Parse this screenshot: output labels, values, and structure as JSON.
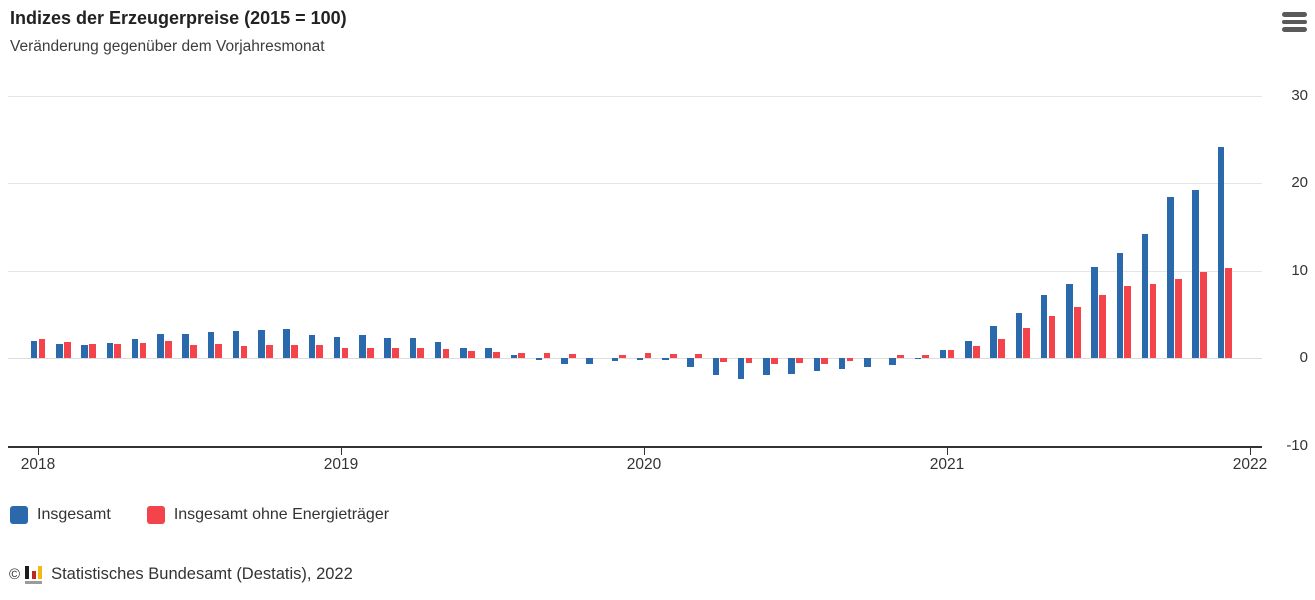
{
  "header": {
    "title": "Indizes der Erzeugerpreise (2015 = 100)",
    "subtitle": "Veränderung gegenüber dem Vorjahresmonat"
  },
  "menu": {
    "icon": "hamburger-icon"
  },
  "chart_data": {
    "type": "bar",
    "title": "Indizes der Erzeugerpreise (2015 = 100)",
    "subtitle": "Veränderung gegenüber dem Vorjahresmonat",
    "x_start": "2018-01",
    "x_frequency": "monthly",
    "x_tick_labels": [
      "2018",
      "2019",
      "2020",
      "2021",
      "2022"
    ],
    "y_ticks": [
      30,
      20,
      10,
      0,
      -10
    ],
    "ylim": [
      -10,
      30
    ],
    "grid": true,
    "legend_position": "bottom-left",
    "series": [
      {
        "name": "Insgesamt",
        "color": "#2b69ad",
        "values": [
          1.9,
          1.6,
          1.5,
          1.7,
          2.2,
          2.8,
          2.8,
          3.0,
          3.1,
          3.2,
          3.3,
          2.6,
          2.4,
          2.6,
          2.3,
          2.3,
          1.8,
          1.2,
          1.1,
          0.3,
          -0.2,
          -0.7,
          -0.7,
          -0.3,
          -0.2,
          -0.2,
          -1.0,
          -2.0,
          -2.4,
          -2.0,
          -1.8,
          -1.5,
          -1.3,
          -1.0,
          -0.8,
          -0.1,
          0.9,
          1.9,
          3.7,
          5.2,
          7.2,
          8.5,
          10.4,
          12.0,
          14.2,
          18.4,
          19.2,
          24.2
        ]
      },
      {
        "name": "Insgesamt ohne Energieträger",
        "color": "#f2444a",
        "values": [
          2.2,
          1.8,
          1.6,
          1.6,
          1.7,
          1.9,
          1.5,
          1.6,
          1.4,
          1.5,
          1.5,
          1.5,
          1.2,
          1.2,
          1.2,
          1.1,
          1.0,
          0.8,
          0.7,
          0.6,
          0.6,
          0.5,
          0.0,
          0.3,
          0.6,
          0.5,
          0.5,
          -0.5,
          -0.6,
          -0.7,
          -0.6,
          -0.7,
          -0.3,
          0.0,
          0.3,
          0.3,
          0.9,
          1.4,
          2.2,
          3.4,
          4.8,
          5.8,
          7.2,
          8.3,
          8.5,
          9.1,
          9.8,
          10.3
        ]
      }
    ]
  },
  "legend": {
    "items": [
      {
        "label": "Insgesamt",
        "color": "#2b69ad"
      },
      {
        "label": "Insgesamt ohne Energieträger",
        "color": "#f2444a"
      }
    ]
  },
  "footer": {
    "copyright_symbol": "©",
    "source": "Statistisches Bundesamt (Destatis), 2022",
    "logo_colors": {
      "black": "#1d1d1b",
      "red": "#c0271d",
      "gold": "#f6b912",
      "base": "#9c9b9b"
    }
  }
}
